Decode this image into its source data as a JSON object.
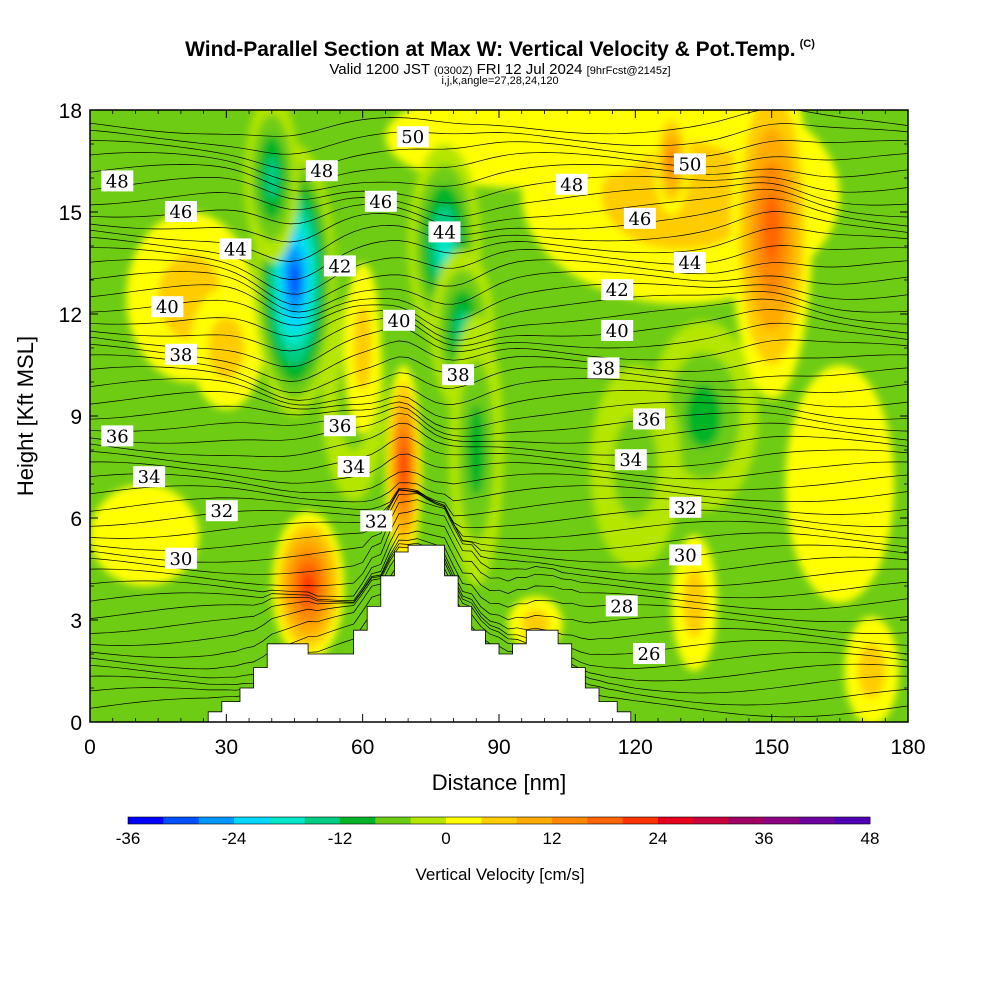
{
  "header": {
    "title": "Wind-Parallel Section at Max W: Vertical Velocity & Pot.Temp.",
    "copyright": "(C)",
    "valid_prefix": "Valid 1200 JST",
    "valid_utc": "(0300Z)",
    "valid_date": "FRI 12 Jul 2024",
    "forecast": "[9hrFcst@2145z]",
    "params": "i,j,k,angle=27,28,24,120"
  },
  "chart_data": {
    "type": "heatmap",
    "xlabel": "Distance [nm]",
    "ylabel": "Height [Kft MSL]",
    "xlim": [
      0,
      180
    ],
    "ylim": [
      0,
      18
    ],
    "xticks": [
      0,
      30,
      60,
      90,
      120,
      150,
      180
    ],
    "yticks": [
      0,
      3,
      6,
      9,
      12,
      15,
      18
    ],
    "colorbar": {
      "label": "Vertical Velocity [cm/s]",
      "min": -36,
      "max": 48,
      "step": 4,
      "tick_values": [
        -36,
        -24,
        -12,
        0,
        12,
        24,
        36,
        48
      ],
      "colors": [
        "#0000ff",
        "#0050ff",
        "#0096ff",
        "#00d8ff",
        "#00e6c8",
        "#00cc82",
        "#00b428",
        "#6ecc14",
        "#b4e600",
        "#ffff00",
        "#ffcc00",
        "#ffaa00",
        "#ff8800",
        "#ff6400",
        "#ff3200",
        "#e6001e",
        "#c8003c",
        "#a00064",
        "#8c0082",
        "#6e00a0",
        "#5000b4"
      ]
    },
    "theta_contour_labels": [
      {
        "value": "50",
        "x": 71,
        "y": 17.2
      },
      {
        "value": "50",
        "x": 132,
        "y": 16.4
      },
      {
        "value": "48",
        "x": 6,
        "y": 15.9
      },
      {
        "value": "48",
        "x": 51,
        "y": 16.2
      },
      {
        "value": "48",
        "x": 106,
        "y": 15.8
      },
      {
        "value": "46",
        "x": 20,
        "y": 15.0
      },
      {
        "value": "46",
        "x": 64,
        "y": 15.3
      },
      {
        "value": "46",
        "x": 121,
        "y": 14.8
      },
      {
        "value": "44",
        "x": 32,
        "y": 13.9
      },
      {
        "value": "44",
        "x": 78,
        "y": 14.4
      },
      {
        "value": "44",
        "x": 132,
        "y": 13.5
      },
      {
        "value": "42",
        "x": 55,
        "y": 13.4
      },
      {
        "value": "42",
        "x": 116,
        "y": 12.7
      },
      {
        "value": "40",
        "x": 17,
        "y": 12.2
      },
      {
        "value": "40",
        "x": 68,
        "y": 11.8
      },
      {
        "value": "40",
        "x": 116,
        "y": 11.5
      },
      {
        "value": "38",
        "x": 20,
        "y": 10.8
      },
      {
        "value": "38",
        "x": 81,
        "y": 10.2
      },
      {
        "value": "38",
        "x": 113,
        "y": 10.4
      },
      {
        "value": "36",
        "x": 6,
        "y": 8.4
      },
      {
        "value": "36",
        "x": 55,
        "y": 8.7
      },
      {
        "value": "36",
        "x": 123,
        "y": 8.9
      },
      {
        "value": "34",
        "x": 13,
        "y": 7.2
      },
      {
        "value": "34",
        "x": 58,
        "y": 7.5
      },
      {
        "value": "34",
        "x": 119,
        "y": 7.7
      },
      {
        "value": "32",
        "x": 29,
        "y": 6.2
      },
      {
        "value": "32",
        "x": 63,
        "y": 5.9
      },
      {
        "value": "32",
        "x": 131,
        "y": 6.3
      },
      {
        "value": "30",
        "x": 20,
        "y": 4.8
      },
      {
        "value": "30",
        "x": 131,
        "y": 4.9
      },
      {
        "value": "28",
        "x": 117,
        "y": 3.4
      },
      {
        "value": "26",
        "x": 123,
        "y": 2.0
      }
    ],
    "updraft_cores": [
      {
        "x": 69,
        "y": 7.5,
        "w_cm_s": 22
      },
      {
        "x": 48,
        "y": 4.0,
        "w_cm_s": 22
      },
      {
        "x": 150,
        "y": 14.5,
        "w_cm_s": 20
      },
      {
        "x": 128,
        "y": 16.5,
        "w_cm_s": 14
      }
    ],
    "downdraft_cores": [
      {
        "x": 45,
        "y": 13.0,
        "w_cm_s": -32
      },
      {
        "x": 78,
        "y": 14.0,
        "w_cm_s": -20
      },
      {
        "x": 82,
        "y": 11.5,
        "w_cm_s": -16
      }
    ],
    "terrain": [
      [
        0,
        0
      ],
      [
        26,
        0
      ],
      [
        26,
        0.3
      ],
      [
        29,
        0.3
      ],
      [
        29,
        0.6
      ],
      [
        33,
        0.6
      ],
      [
        33,
        1.0
      ],
      [
        36,
        1.0
      ],
      [
        36,
        1.6
      ],
      [
        39,
        1.6
      ],
      [
        39,
        2.3
      ],
      [
        48,
        2.3
      ],
      [
        48,
        2.0
      ],
      [
        58,
        2.0
      ],
      [
        58,
        2.7
      ],
      [
        61,
        2.7
      ],
      [
        61,
        3.4
      ],
      [
        64,
        3.4
      ],
      [
        64,
        4.3
      ],
      [
        67,
        4.3
      ],
      [
        67,
        5.0
      ],
      [
        70,
        5.0
      ],
      [
        70,
        5.2
      ],
      [
        78,
        5.2
      ],
      [
        78,
        4.3
      ],
      [
        81,
        4.3
      ],
      [
        81,
        3.4
      ],
      [
        84,
        3.4
      ],
      [
        84,
        2.7
      ],
      [
        87,
        2.7
      ],
      [
        87,
        2.3
      ],
      [
        90,
        2.3
      ],
      [
        90,
        2.0
      ],
      [
        93,
        2.0
      ],
      [
        93,
        2.3
      ],
      [
        96,
        2.3
      ],
      [
        96,
        2.7
      ],
      [
        103,
        2.7
      ],
      [
        103,
        2.3
      ],
      [
        106,
        2.3
      ],
      [
        106,
        1.6
      ],
      [
        109,
        1.6
      ],
      [
        109,
        1.0
      ],
      [
        112,
        1.0
      ],
      [
        112,
        0.6
      ],
      [
        116,
        0.6
      ],
      [
        116,
        0.3
      ],
      [
        119,
        0.3
      ],
      [
        119,
        0
      ],
      [
        180,
        0
      ]
    ]
  }
}
